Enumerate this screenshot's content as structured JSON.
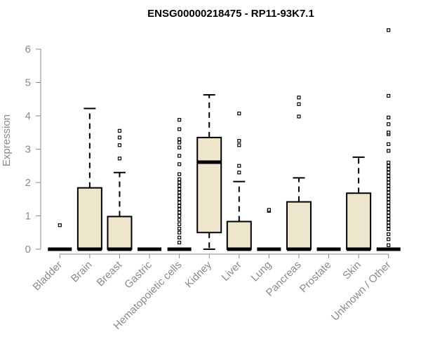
{
  "chart_data": {
    "type": "boxplot",
    "title": "ENSG00000218475 - RP11-93K7.1",
    "xlabel": "",
    "ylabel": "Expression",
    "ylim": [
      0,
      6.6
    ],
    "yticks": [
      0,
      1,
      2,
      3,
      4,
      5,
      6
    ],
    "grid": false,
    "legend": "none",
    "box_fill": "#ede6cd",
    "box_stroke": "#000000",
    "axis_color": "#8a8a8a",
    "categories": [
      "Bladder",
      "Brain",
      "Breast",
      "Gastric",
      "Hematopoietic cells",
      "Kidney",
      "Liver",
      "Lung",
      "Pancreas",
      "Prostate",
      "Skin",
      "Unknown / Other"
    ],
    "boxes": [
      {
        "category": "Bladder",
        "min": 0,
        "q1": 0,
        "median": 0,
        "q3": 0,
        "max": 0,
        "outliers": [
          0.72
        ]
      },
      {
        "category": "Brain",
        "min": 0,
        "q1": 0,
        "median": 0,
        "q3": 1.84,
        "max": 4.22,
        "outliers": []
      },
      {
        "category": "Breast",
        "min": 0,
        "q1": 0,
        "median": 0,
        "q3": 0.98,
        "max": 2.3,
        "outliers": [
          2.72,
          3.12,
          3.35,
          3.55
        ]
      },
      {
        "category": "Gastric",
        "min": 0,
        "q1": 0,
        "median": 0,
        "q3": 0,
        "max": 0,
        "outliers": []
      },
      {
        "category": "Hematopoietic cells",
        "min": 0,
        "q1": 0,
        "median": 0,
        "q3": 0,
        "max": 0,
        "outliers": [
          0.2,
          0.35,
          0.5,
          0.62,
          0.75,
          0.88,
          1.0,
          1.1,
          1.2,
          1.3,
          1.4,
          1.5,
          1.6,
          1.7,
          1.8,
          1.9,
          2.0,
          2.1,
          2.25,
          2.55,
          2.8,
          3.05,
          3.2,
          3.3,
          3.6,
          3.88
        ]
      },
      {
        "category": "Kidney",
        "min": 0,
        "q1": 0.5,
        "median": 2.61,
        "q3": 3.35,
        "max": 4.63,
        "outliers": []
      },
      {
        "category": "Liver",
        "min": 0,
        "q1": 0,
        "median": 0,
        "q3": 0.83,
        "max": 2.03,
        "outliers": [
          2.3,
          2.5,
          3.12,
          3.25,
          4.07
        ]
      },
      {
        "category": "Lung",
        "min": 0,
        "q1": 0,
        "median": 0,
        "q3": 0,
        "max": 0,
        "outliers": [
          1.15,
          1.18
        ]
      },
      {
        "category": "Pancreas",
        "min": 0,
        "q1": 0,
        "median": 0,
        "q3": 1.42,
        "max": 2.14,
        "outliers": [
          3.98,
          4.35,
          4.55
        ]
      },
      {
        "category": "Prostate",
        "min": 0,
        "q1": 0,
        "median": 0,
        "q3": 0,
        "max": 0,
        "outliers": []
      },
      {
        "category": "Skin",
        "min": 0,
        "q1": 0,
        "median": 0,
        "q3": 1.68,
        "max": 2.76,
        "outliers": []
      },
      {
        "category": "Unknown / Other",
        "min": 0,
        "q1": 0,
        "median": 0,
        "q3": 0,
        "max": 0,
        "outliers": [
          0.12,
          0.3,
          0.45,
          0.6,
          0.7,
          0.8,
          0.9,
          1.0,
          1.1,
          1.2,
          1.3,
          1.4,
          1.5,
          1.6,
          1.7,
          1.8,
          1.9,
          2.0,
          2.1,
          2.2,
          2.3,
          2.4,
          2.5,
          2.6,
          2.95,
          3.15,
          3.45,
          3.5,
          3.75,
          3.95,
          4.6,
          6.57
        ]
      }
    ]
  }
}
